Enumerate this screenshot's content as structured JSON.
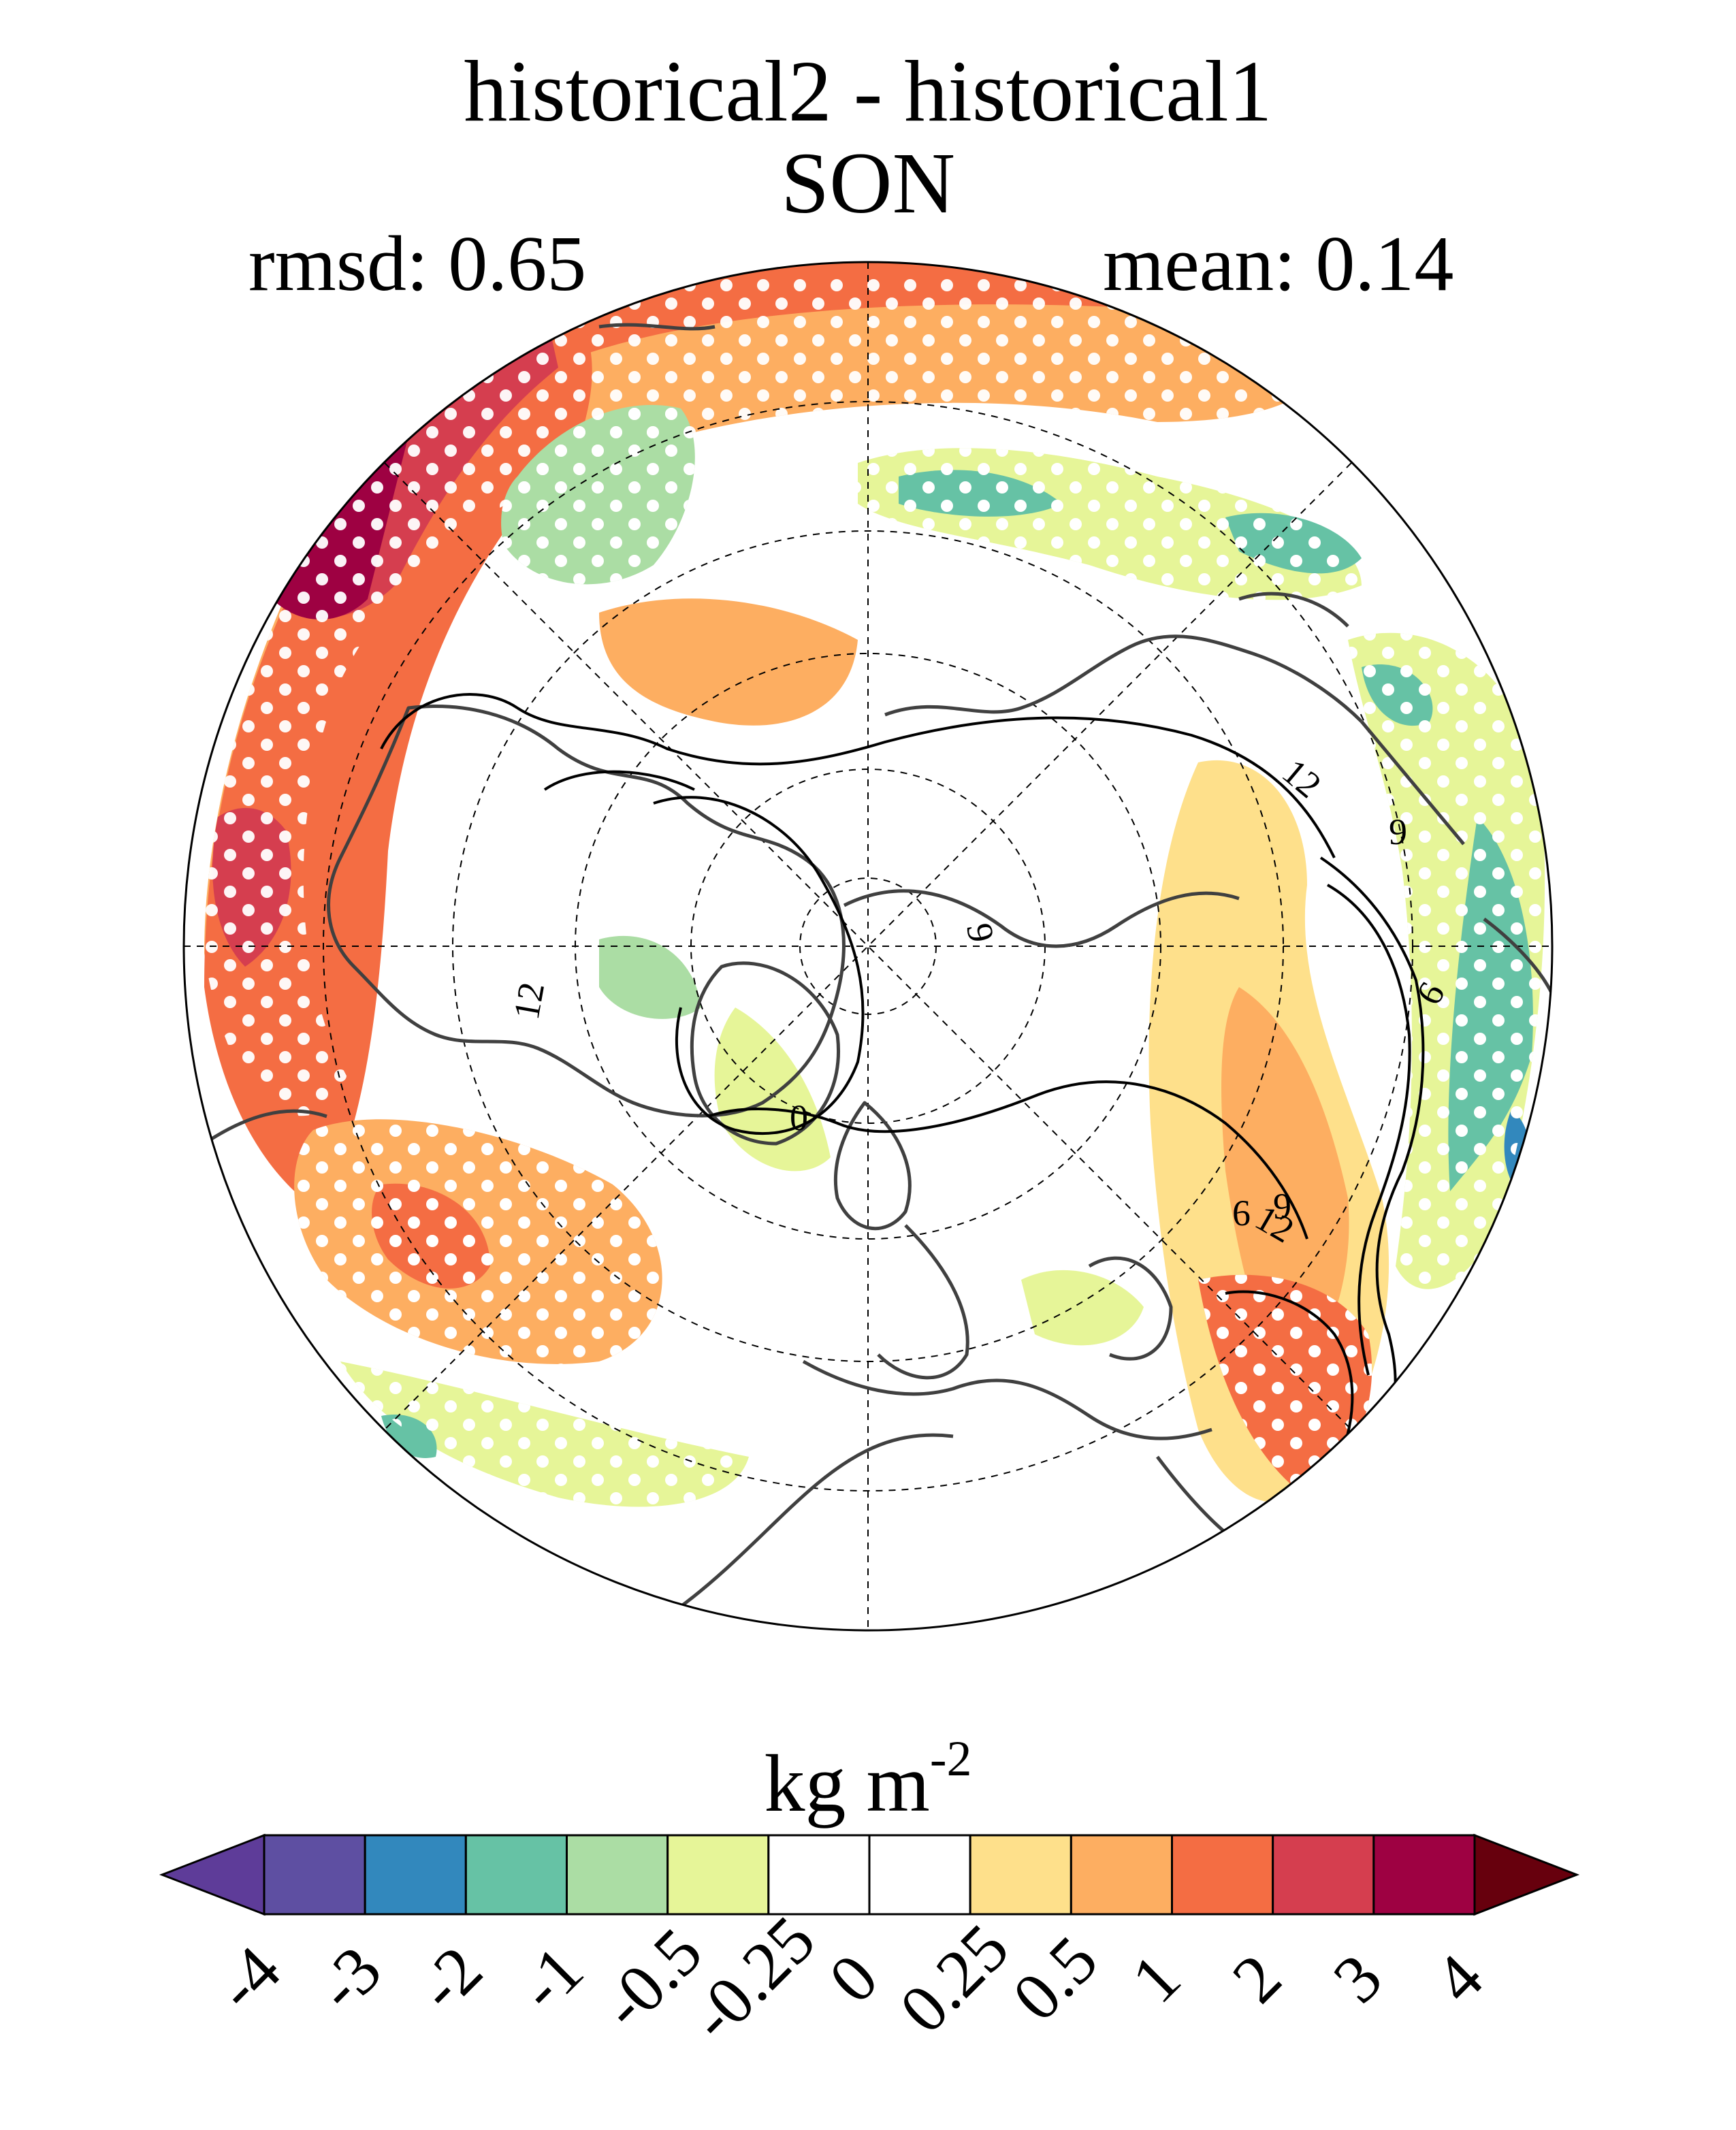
{
  "title_line1": "historical2 - historical1",
  "title_line2": "SON",
  "rmsd_label": "rmsd: 0.65",
  "mean_label": "mean: 0.14",
  "colorbar": {
    "unit_text": "kg m",
    "unit_exp": "-2",
    "tick_labels": [
      "-4",
      "-3",
      "-2",
      "-1",
      "-0.5",
      "-0.25",
      "0",
      "0.25",
      "0.5",
      "1",
      "2",
      "3",
      "4"
    ],
    "colors": [
      "#5e3c99",
      "#5e4fa2",
      "#3288bd",
      "#66c2a5",
      "#abdda4",
      "#e6f598",
      "#ffffff",
      "#ffffff",
      "#fee08b",
      "#fdae61",
      "#f46d43",
      "#d53e4f",
      "#9e0142",
      "#67000d"
    ]
  },
  "map": {
    "contour_labels": [
      "12",
      "9",
      "6",
      "9",
      "0",
      "12",
      "6",
      "12",
      "9"
    ]
  }
}
